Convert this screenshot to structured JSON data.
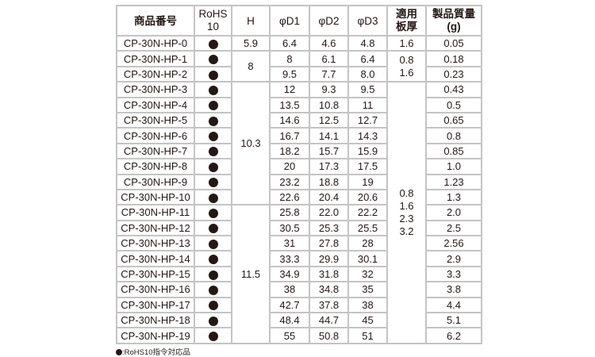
{
  "headers": [
    "商品番号",
    "RoHS\n10",
    "H",
    "φD1",
    "φD2",
    "φD3",
    "適用\n板厚",
    "製品質量\n(g)"
  ],
  "rohs_icon": "filled-circle",
  "rows": [
    {
      "code": "CP-30N-HP-0",
      "d1": "6.4",
      "d2": "4.6",
      "d3": "4.8",
      "mass": "0.05"
    },
    {
      "code": "CP-30N-HP-1",
      "d1": "8",
      "d2": "6.1",
      "d3": "6.4",
      "mass": "0.18"
    },
    {
      "code": "CP-30N-HP-2",
      "d1": "9.5",
      "d2": "7.7",
      "d3": "8.0",
      "mass": "0.23"
    },
    {
      "code": "CP-30N-HP-3",
      "d1": "12",
      "d2": "9.3",
      "d3": "9.5",
      "mass": "0.43"
    },
    {
      "code": "CP-30N-HP-4",
      "d1": "13.5",
      "d2": "10.8",
      "d3": "11",
      "mass": "0.5"
    },
    {
      "code": "CP-30N-HP-5",
      "d1": "14.6",
      "d2": "12.5",
      "d3": "12.7",
      "mass": "0.65"
    },
    {
      "code": "CP-30N-HP-6",
      "d1": "16.7",
      "d2": "14.1",
      "d3": "14.3",
      "mass": "0.8"
    },
    {
      "code": "CP-30N-HP-7",
      "d1": "18.2",
      "d2": "15.7",
      "d3": "15.9",
      "mass": "0.85"
    },
    {
      "code": "CP-30N-HP-8",
      "d1": "20",
      "d2": "17.3",
      "d3": "17.5",
      "mass": "1.0"
    },
    {
      "code": "CP-30N-HP-9",
      "d1": "23.2",
      "d2": "18.8",
      "d3": "19",
      "mass": "1.23"
    },
    {
      "code": "CP-30N-HP-10",
      "d1": "22.6",
      "d2": "20.4",
      "d3": "20.6",
      "mass": "1.3"
    },
    {
      "code": "CP-30N-HP-11",
      "d1": "25.8",
      "d2": "22.0",
      "d3": "22.2",
      "mass": "2.0"
    },
    {
      "code": "CP-30N-HP-12",
      "d1": "30.5",
      "d2": "25.3",
      "d3": "25.5",
      "mass": "2.5"
    },
    {
      "code": "CP-30N-HP-13",
      "d1": "31",
      "d2": "27.8",
      "d3": "28",
      "mass": "2.56"
    },
    {
      "code": "CP-30N-HP-14",
      "d1": "33.3",
      "d2": "29.9",
      "d3": "30.1",
      "mass": "2.9"
    },
    {
      "code": "CP-30N-HP-15",
      "d1": "34.9",
      "d2": "31.8",
      "d3": "32",
      "mass": "3.3"
    },
    {
      "code": "CP-30N-HP-16",
      "d1": "38",
      "d2": "34.8",
      "d3": "35",
      "mass": "3.8"
    },
    {
      "code": "CP-30N-HP-17",
      "d1": "42.7",
      "d2": "37.8",
      "d3": "38",
      "mass": "4.4"
    },
    {
      "code": "CP-30N-HP-18",
      "d1": "48.4",
      "d2": "44.7",
      "d3": "45",
      "mass": "5.1"
    },
    {
      "code": "CP-30N-HP-19",
      "d1": "55",
      "d2": "50.8",
      "d3": "51",
      "mass": "6.2"
    }
  ],
  "h_groups": [
    {
      "start": 0,
      "span": 1,
      "value": "5.9"
    },
    {
      "start": 1,
      "span": 2,
      "value": "8"
    },
    {
      "start": 3,
      "span": 8,
      "value": "10.3"
    },
    {
      "start": 11,
      "span": 9,
      "value": "11.5"
    }
  ],
  "thickness_groups": [
    {
      "start": 0,
      "span": 1,
      "value": "1.6"
    },
    {
      "start": 1,
      "span": 2,
      "value": "0.8\n1.6"
    },
    {
      "start": 3,
      "span": 17,
      "value": "0.8\n1.6\n2.3\n3.2"
    }
  ],
  "footnote": ":RoHS10指令対応品"
}
